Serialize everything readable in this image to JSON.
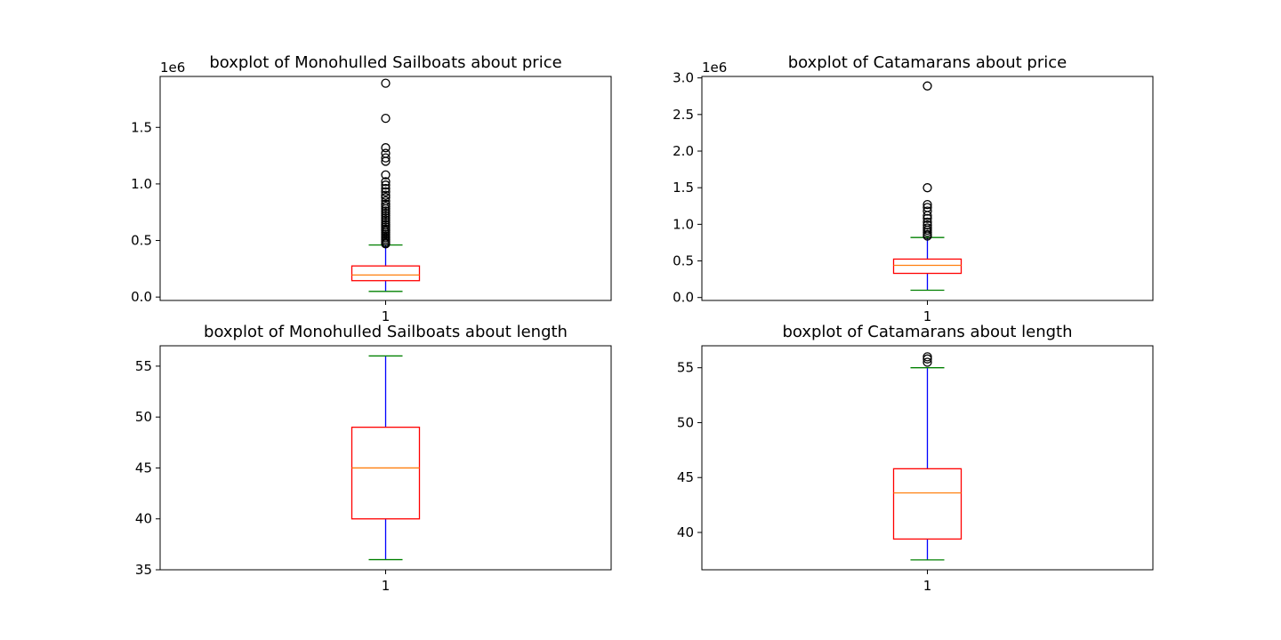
{
  "chart_data": [
    {
      "type": "box",
      "title": "boxplot of Monohulled Sailboats about price",
      "offset_label": "1e6",
      "categories": [
        "1"
      ],
      "ylim": [
        -30000,
        1950000
      ],
      "yticks": [
        {
          "value": 0,
          "label": "0.0"
        },
        {
          "value": 500000,
          "label": "0.5"
        },
        {
          "value": 1000000,
          "label": "1.0"
        },
        {
          "value": 1500000,
          "label": "1.5"
        }
      ],
      "box": {
        "whisker_low": 50000,
        "q1": 145000,
        "median": 195000,
        "q3": 275000,
        "whisker_high": 460000
      },
      "outliers": [
        1890000,
        1580000,
        1320000,
        1270000,
        1230000,
        1200000,
        1080000,
        1020000,
        990000,
        960000,
        930000,
        900000,
        880000,
        850000,
        820000,
        800000,
        780000,
        760000,
        740000,
        720000,
        700000,
        680000,
        660000,
        640000,
        620000,
        600000,
        585000,
        570000,
        555000,
        540000,
        525000,
        510000,
        495000,
        480000,
        470000
      ],
      "colors": {
        "box": "#ff0000",
        "median": "#ff7f0e",
        "whisker": "#0000ff",
        "cap": "#008000",
        "flier": "#000000"
      }
    },
    {
      "type": "box",
      "title": "boxplot of Catamarans about price",
      "offset_label": "1e6",
      "categories": [
        "1"
      ],
      "ylim": [
        -40000,
        3020000
      ],
      "yticks": [
        {
          "value": 0,
          "label": "0.0"
        },
        {
          "value": 500000,
          "label": "0.5"
        },
        {
          "value": 1000000,
          "label": "1.0"
        },
        {
          "value": 1500000,
          "label": "1.5"
        },
        {
          "value": 2000000,
          "label": "2.0"
        },
        {
          "value": 2500000,
          "label": "2.5"
        },
        {
          "value": 3000000,
          "label": "3.0"
        }
      ],
      "box": {
        "whisker_low": 100000,
        "q1": 330000,
        "median": 440000,
        "q3": 525000,
        "whisker_high": 820000
      },
      "outliers": [
        2890000,
        1500000,
        1270000,
        1230000,
        1180000,
        1120000,
        1080000,
        1030000,
        990000,
        950000,
        920000,
        890000,
        860000,
        840000
      ],
      "colors": {
        "box": "#ff0000",
        "median": "#ff7f0e",
        "whisker": "#0000ff",
        "cap": "#008000",
        "flier": "#000000"
      }
    },
    {
      "type": "box",
      "title": "boxplot of Monohulled Sailboats about length",
      "offset_label": "",
      "categories": [
        "1"
      ],
      "ylim": [
        35,
        57
      ],
      "yticks": [
        {
          "value": 35,
          "label": "35"
        },
        {
          "value": 40,
          "label": "40"
        },
        {
          "value": 45,
          "label": "45"
        },
        {
          "value": 50,
          "label": "50"
        },
        {
          "value": 55,
          "label": "55"
        }
      ],
      "box": {
        "whisker_low": 36,
        "q1": 40,
        "median": 45,
        "q3": 49,
        "whisker_high": 56
      },
      "outliers": [],
      "colors": {
        "box": "#ff0000",
        "median": "#ff7f0e",
        "whisker": "#0000ff",
        "cap": "#008000",
        "flier": "#000000"
      }
    },
    {
      "type": "box",
      "title": "boxplot of Catamarans about length",
      "offset_label": "",
      "categories": [
        "1"
      ],
      "ylim": [
        36.6,
        57
      ],
      "yticks": [
        {
          "value": 40,
          "label": "40"
        },
        {
          "value": 45,
          "label": "45"
        },
        {
          "value": 50,
          "label": "50"
        },
        {
          "value": 55,
          "label": "55"
        }
      ],
      "box": {
        "whisker_low": 37.5,
        "q1": 39.4,
        "median": 43.6,
        "q3": 45.8,
        "whisker_high": 55
      },
      "outliers": [
        56,
        55.8,
        55.5
      ],
      "colors": {
        "box": "#ff0000",
        "median": "#ff7f0e",
        "whisker": "#0000ff",
        "cap": "#008000",
        "flier": "#000000"
      }
    }
  ]
}
